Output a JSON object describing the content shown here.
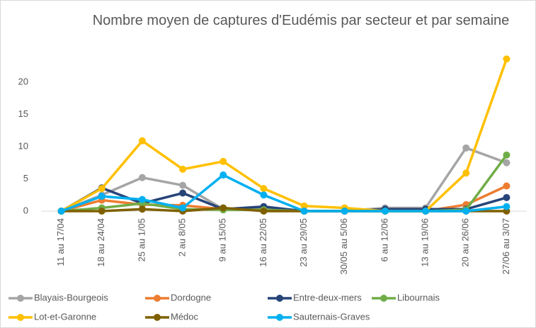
{
  "chart_data": {
    "type": "line",
    "title": "Nombre moyen de captures d'Eudémis par secteur et par semaine",
    "categories": [
      "11 au 17/04",
      "18 au 24/04",
      "25 au 1/05",
      "2 au 8/05",
      "9 au 15/05",
      "16 au 22/05",
      "23 au 29/05",
      "30/05 au 5/06",
      "6 au 12/06",
      "13 au 19/06",
      "20 au 26/06",
      "27/06 au 3/07"
    ],
    "ylim": [
      0,
      24
    ],
    "yticks": [
      0,
      5,
      10,
      15,
      20
    ],
    "grid": false,
    "legend": "bottom",
    "series": [
      {
        "name": "Blayais-Bourgeois",
        "color": "#a5a5a5",
        "values": [
          0,
          2.5,
          5.2,
          4.0,
          0.3,
          0.3,
          0,
          0,
          0.5,
          0.5,
          9.8,
          7.5
        ]
      },
      {
        "name": "Dordogne",
        "color": "#ed7d31",
        "values": [
          0,
          1.7,
          1.0,
          0.9,
          0.3,
          0.2,
          0,
          0,
          0,
          0,
          1.0,
          3.9
        ]
      },
      {
        "name": "Entre-deux-mers",
        "color": "#264478",
        "values": [
          0,
          3.6,
          1.2,
          2.8,
          0.3,
          0.7,
          0,
          0,
          0.3,
          0.3,
          0.3,
          2.1
        ]
      },
      {
        "name": "Libournais",
        "color": "#70ad47",
        "values": [
          0,
          0.5,
          1.2,
          0.3,
          0.2,
          0.2,
          0,
          0,
          0,
          0,
          0.2,
          8.7
        ]
      },
      {
        "name": "Lot-et-Garonne",
        "color": "#ffc000",
        "values": [
          0,
          3.5,
          10.9,
          6.5,
          7.7,
          3.5,
          0.8,
          0.5,
          0,
          0,
          5.9,
          23.6
        ]
      },
      {
        "name": "Médoc",
        "color": "#7f6000",
        "values": [
          0,
          0,
          0.3,
          0,
          0.5,
          0,
          0,
          0,
          0,
          0,
          0,
          0
        ]
      },
      {
        "name": "Sauternais-Graves",
        "color": "#00b0f0",
        "values": [
          0,
          2.3,
          1.8,
          0.5,
          5.6,
          2.5,
          0,
          0,
          0,
          0,
          0,
          0.7
        ]
      }
    ]
  }
}
